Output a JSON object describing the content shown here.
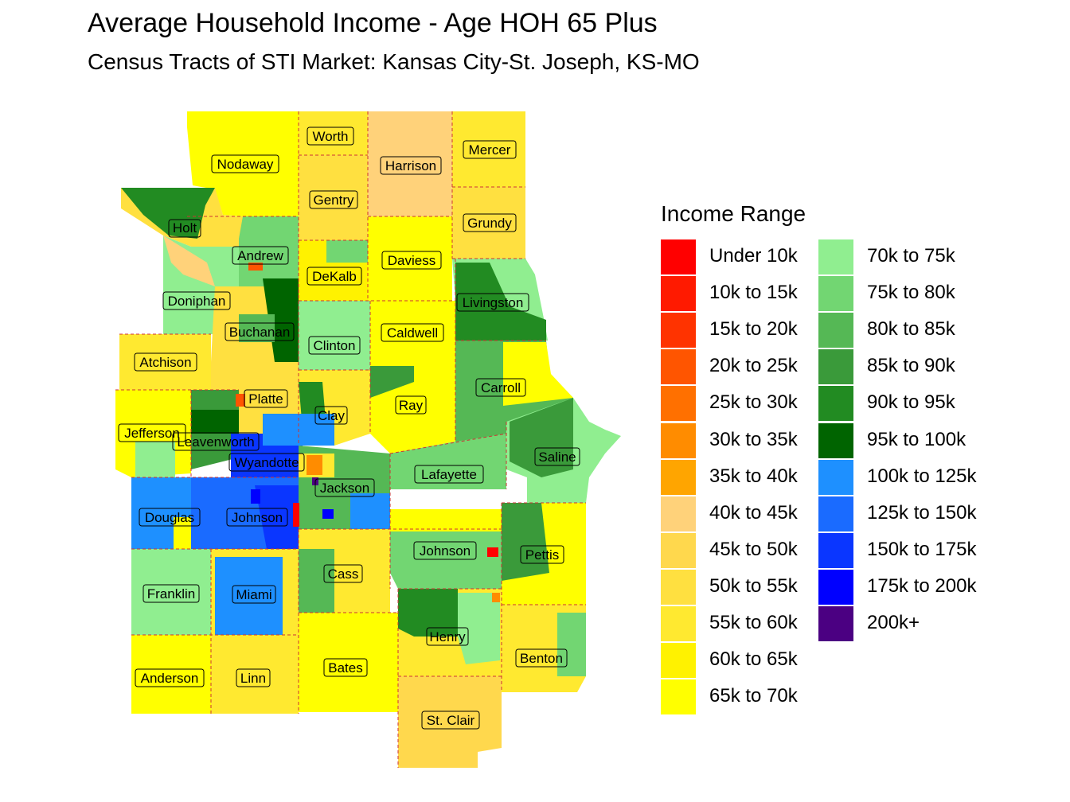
{
  "title": "Average Household Income - Age HOH 65 Plus",
  "subtitle": "Census Tracts of STI Market: Kansas City-St. Joseph, KS-MO",
  "legend": {
    "title": "Income Range",
    "items": [
      {
        "label": "Under 10k",
        "color": "#FF0000"
      },
      {
        "label": "10k to 15k",
        "color": "#FF1A00"
      },
      {
        "label": "15k to 20k",
        "color": "#FF3300"
      },
      {
        "label": "20k to 25k",
        "color": "#FF5500"
      },
      {
        "label": "25k to 30k",
        "color": "#FF7000"
      },
      {
        "label": "30k to 35k",
        "color": "#FF8C00"
      },
      {
        "label": "35k to 40k",
        "color": "#FFA500"
      },
      {
        "label": "40k to 45k",
        "color": "#FFD27A"
      },
      {
        "label": "45k to 50k",
        "color": "#FFD84D"
      },
      {
        "label": "50k to 55k",
        "color": "#FFE040"
      },
      {
        "label": "55k to 60k",
        "color": "#FFE930"
      },
      {
        "label": "60k to 65k",
        "color": "#FFF200"
      },
      {
        "label": "65k to 70k",
        "color": "#FFFF00"
      },
      {
        "label": "70k to 75k",
        "color": "#90EE90"
      },
      {
        "label": "75k to 80k",
        "color": "#72D672"
      },
      {
        "label": "80k to 85k",
        "color": "#55B855"
      },
      {
        "label": "85k to 90k",
        "color": "#3A9A3A"
      },
      {
        "label": "90k to 95k",
        "color": "#228B22"
      },
      {
        "label": "95k to 100k",
        "color": "#006400"
      },
      {
        "label": "100k to 125k",
        "color": "#1E90FF"
      },
      {
        "label": "125k to 150k",
        "color": "#1A6BFF"
      },
      {
        "label": "150k to 175k",
        "color": "#0A36FF"
      },
      {
        "label": "175k to 200k",
        "color": "#0000FF"
      },
      {
        "label": "200k+",
        "color": "#4B0082"
      }
    ]
  },
  "counties": {
    "worth": "Worth",
    "nodaway": "Nodaway",
    "harrison": "Harrison",
    "mercer": "Mercer",
    "gentry": "Gentry",
    "grundy": "Grundy",
    "holt": "Holt",
    "andrew": "Andrew",
    "daviess": "Daviess",
    "dekalb": "DeKalb",
    "doniphan": "Doniphan",
    "livingston": "Livingston",
    "buchanan": "Buchanan",
    "caldwell": "Caldwell",
    "clinton": "Clinton",
    "atchison": "Atchison",
    "carroll": "Carroll",
    "platte": "Platte",
    "ray": "Ray",
    "clay": "Clay",
    "jefferson": "Jefferson",
    "leavenworth": "Leavenworth",
    "saline": "Saline",
    "wyandotte": "Wyandotte",
    "lafayette": "Lafayette",
    "jackson": "Jackson",
    "douglas": "Douglas",
    "johnson_ks": "Johnson",
    "johnson_mo": "Johnson",
    "pettis": "Pettis",
    "cass": "Cass",
    "franklin": "Franklin",
    "miami": "Miami",
    "henry": "Henry",
    "benton": "Benton",
    "bates": "Bates",
    "anderson": "Anderson",
    "linn": "Linn",
    "st_clair": "St. Clair"
  }
}
